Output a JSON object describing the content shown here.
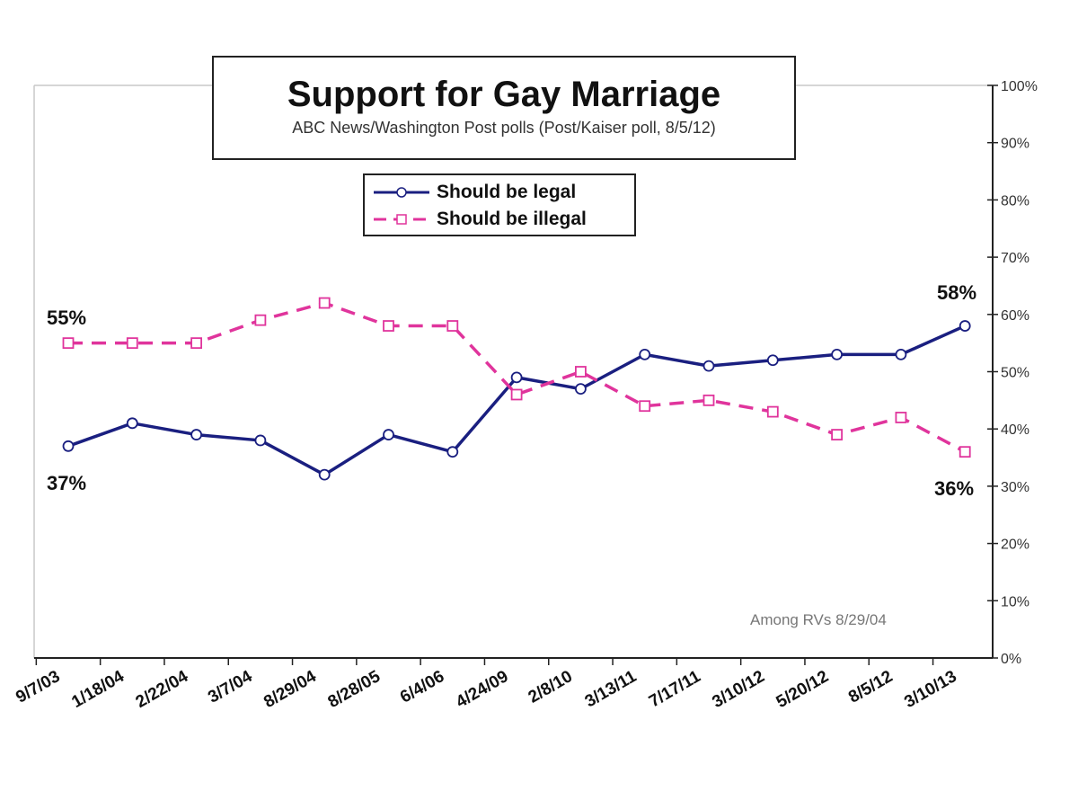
{
  "chart_data": {
    "type": "line",
    "title": "Support for Gay Marriage",
    "subtitle": "ABC News/Washington Post polls (Post/Kaiser poll, 8/5/12)",
    "categories": [
      "9/7/03",
      "1/18/04",
      "2/22/04",
      "3/7/04",
      "8/29/04",
      "8/28/05",
      "6/4/06",
      "4/24/09",
      "2/8/10",
      "3/13/11",
      "7/17/11",
      "3/10/12",
      "5/20/12",
      "8/5/12",
      "3/10/13"
    ],
    "series": [
      {
        "name": "Should be legal",
        "color": "#1a1f80",
        "dashed": false,
        "marker": "circle",
        "values": [
          37,
          41,
          39,
          38,
          32,
          39,
          36,
          49,
          47,
          53,
          51,
          52,
          53,
          53,
          58
        ]
      },
      {
        "name": "Should be illegal",
        "color": "#e0349c",
        "dashed": true,
        "marker": "square",
        "values": [
          55,
          55,
          55,
          59,
          62,
          58,
          58,
          46,
          50,
          44,
          45,
          43,
          39,
          42,
          36
        ]
      }
    ],
    "y_axis": {
      "position": "right",
      "ylim": [
        0,
        100
      ],
      "ticks": [
        "0%",
        "10%",
        "20%",
        "30%",
        "40%",
        "50%",
        "60%",
        "70%",
        "80%",
        "90%",
        "100%"
      ]
    },
    "annotations": {
      "legal_start": "37%",
      "illegal_start": "55%",
      "legal_end": "58%",
      "illegal_end": "36%",
      "note": "Among RVs 8/29/04"
    },
    "legend_placement": "top-center",
    "grid": false
  }
}
